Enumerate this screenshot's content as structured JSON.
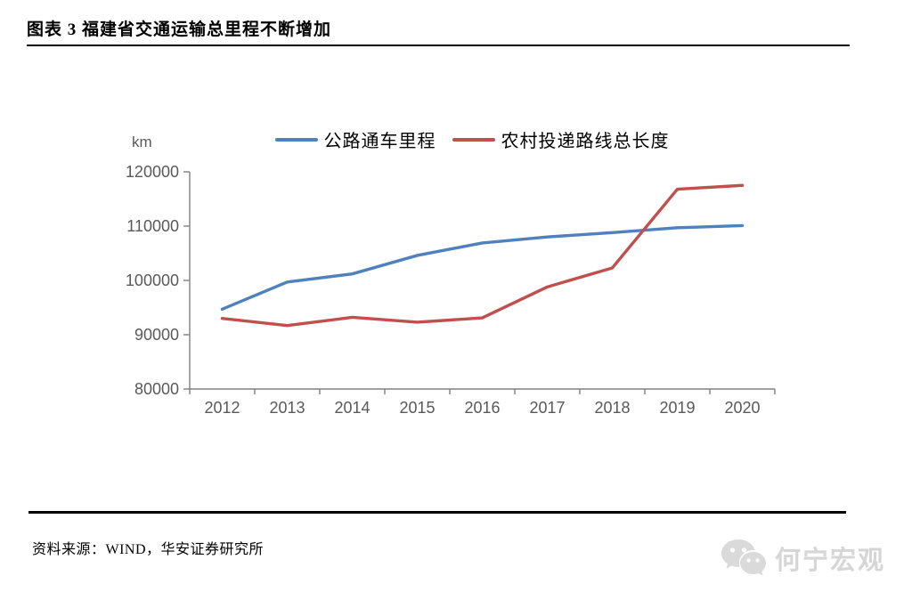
{
  "page": {
    "title": "图表 3 福建省交通运输总里程不断增加",
    "source": "资料来源：WIND，华安证券研究所",
    "watermark": "何宁宏观"
  },
  "colors": {
    "series_blue": "#4F81BD",
    "series_red": "#C0504D",
    "axis": "#808080",
    "tick_label": "#595959",
    "watermark": "#D6D6D6",
    "divider": "#000000"
  },
  "chart_data": {
    "type": "line",
    "title": "",
    "unit_label": "km",
    "xlabel": "",
    "ylabel": "km",
    "categories": [
      "2012",
      "2013",
      "2014",
      "2015",
      "2016",
      "2017",
      "2018",
      "2019",
      "2020"
    ],
    "series": [
      {
        "name": "公路通车里程",
        "color": "#4F81BD",
        "values": [
          94700,
          99700,
          101200,
          104600,
          106900,
          108000,
          108800,
          109700,
          110100
        ]
      },
      {
        "name": "农村投递路线总长度",
        "color": "#C0504D",
        "values": [
          93000,
          91700,
          93200,
          92300,
          93100,
          98800,
          102300,
          116800,
          117500
        ]
      }
    ],
    "ylim": [
      80000,
      120000
    ],
    "ytick_step": 10000,
    "yticks": [
      "120000",
      "110000",
      "100000",
      "90000",
      "80000"
    ],
    "grid": false,
    "legend_position": "top"
  }
}
